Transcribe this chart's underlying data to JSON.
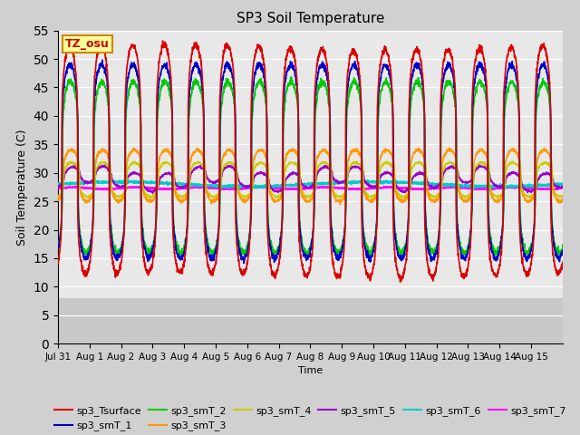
{
  "title": "SP3 Soil Temperature",
  "xlabel": "Time",
  "ylabel": "Soil Temperature (C)",
  "ylim": [
    0,
    55
  ],
  "yticks": [
    0,
    5,
    10,
    15,
    20,
    25,
    30,
    35,
    40,
    45,
    50,
    55
  ],
  "fig_bg": "#d0d0d0",
  "plot_bg": "#e8e8e8",
  "grid_bg_lower": "#d0d0d0",
  "tz_label": "TZ_osu",
  "series_colors": {
    "sp3_Tsurface": "#dd0000",
    "sp3_smT_1": "#0000cc",
    "sp3_smT_2": "#00cc00",
    "sp3_smT_3": "#ff9900",
    "sp3_smT_4": "#cccc00",
    "sp3_smT_5": "#9900cc",
    "sp3_smT_6": "#00cccc",
    "sp3_smT_7": "#ff00ff"
  },
  "x_tick_labels": [
    "Jul 31",
    "Aug 1",
    "Aug 2",
    "Aug 3",
    "Aug 4",
    "Aug 5",
    "Aug 6",
    "Aug 7",
    "Aug 8",
    "Aug 9",
    "Aug 10",
    "Aug 11",
    "Aug 12",
    "Aug 13",
    "Aug 14",
    "Aug 15"
  ],
  "n_days": 16,
  "points_per_day": 144
}
